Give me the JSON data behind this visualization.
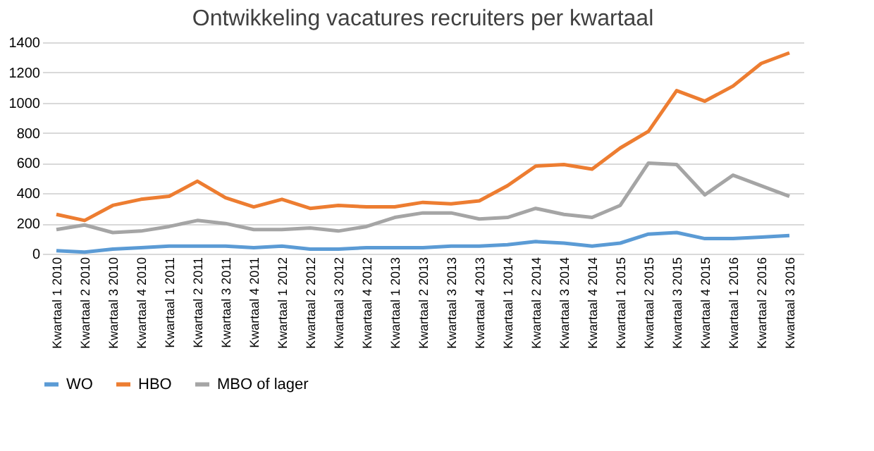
{
  "chart_data": {
    "type": "line",
    "title": "Ontwikkeling vacatures recruiters per kwartaal",
    "categories": [
      "Kwartaal 1 2010",
      "Kwartaal 2 2010",
      "Kwartaal 3 2010",
      "Kwartaal 4 2010",
      "Kwartaal 1 2011",
      "Kwartaal 2 2011",
      "Kwartaal 3 2011",
      "Kwartaal 4 2011",
      "Kwartaal 1 2012",
      "Kwartaal 2 2012",
      "Kwartaal 3 2012",
      "Kwartaal 4 2012",
      "Kwartaal 1 2013",
      "Kwartaal 2 2013",
      "Kwartaal 3 2013",
      "Kwartaal 4 2013",
      "Kwartaal 1 2014",
      "Kwartaal 2 2014",
      "Kwartaal 3 2014",
      "Kwartaal 4 2014",
      "Kwartaal 1 2015",
      "Kwartaal 2 2015",
      "Kwartaal 3 2015",
      "Kwartaal 4 2015",
      "Kwartaal 1 2016",
      "Kwartaal 2 2016",
      "Kwartaal 3 2016"
    ],
    "series": [
      {
        "name": "WO",
        "color": "#5b9bd5",
        "values": [
          20,
          10,
          30,
          40,
          50,
          50,
          50,
          40,
          50,
          30,
          30,
          40,
          40,
          40,
          50,
          50,
          60,
          80,
          70,
          50,
          70,
          130,
          140,
          100,
          100,
          110,
          120
        ]
      },
      {
        "name": "HBO",
        "color": "#ed7d31",
        "values": [
          260,
          220,
          320,
          360,
          380,
          480,
          370,
          310,
          360,
          300,
          320,
          310,
          310,
          340,
          330,
          350,
          450,
          580,
          590,
          560,
          700,
          810,
          1080,
          1010,
          1110,
          1260,
          1330
        ]
      },
      {
        "name": "MBO of lager",
        "color": "#a5a5a5",
        "values": [
          160,
          190,
          140,
          150,
          180,
          220,
          200,
          160,
          160,
          170,
          150,
          180,
          240,
          270,
          270,
          230,
          240,
          300,
          260,
          240,
          320,
          600,
          590,
          390,
          520,
          450,
          380
        ]
      }
    ],
    "ylim": [
      0,
      1400
    ],
    "yticks": [
      0,
      200,
      400,
      600,
      800,
      1000,
      1200,
      1400
    ],
    "grid": "y",
    "legend": "bottom",
    "line_style": "solid",
    "marker": "none"
  }
}
